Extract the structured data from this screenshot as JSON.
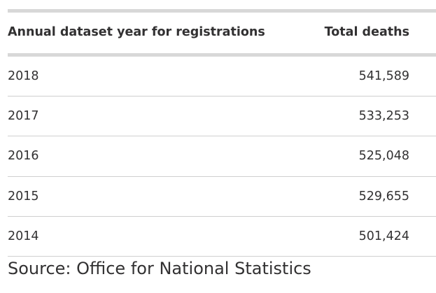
{
  "table": {
    "headers": {
      "year": "Annual dataset year for registrations",
      "deaths": "Total deaths"
    },
    "rows": [
      {
        "year": "2018",
        "deaths": "541,589"
      },
      {
        "year": "2017",
        "deaths": "533,253"
      },
      {
        "year": "2016",
        "deaths": "525,048"
      },
      {
        "year": "2015",
        "deaths": "529,655"
      },
      {
        "year": "2014",
        "deaths": "501,424"
      }
    ]
  },
  "source": "Source: Office for National Statistics"
}
